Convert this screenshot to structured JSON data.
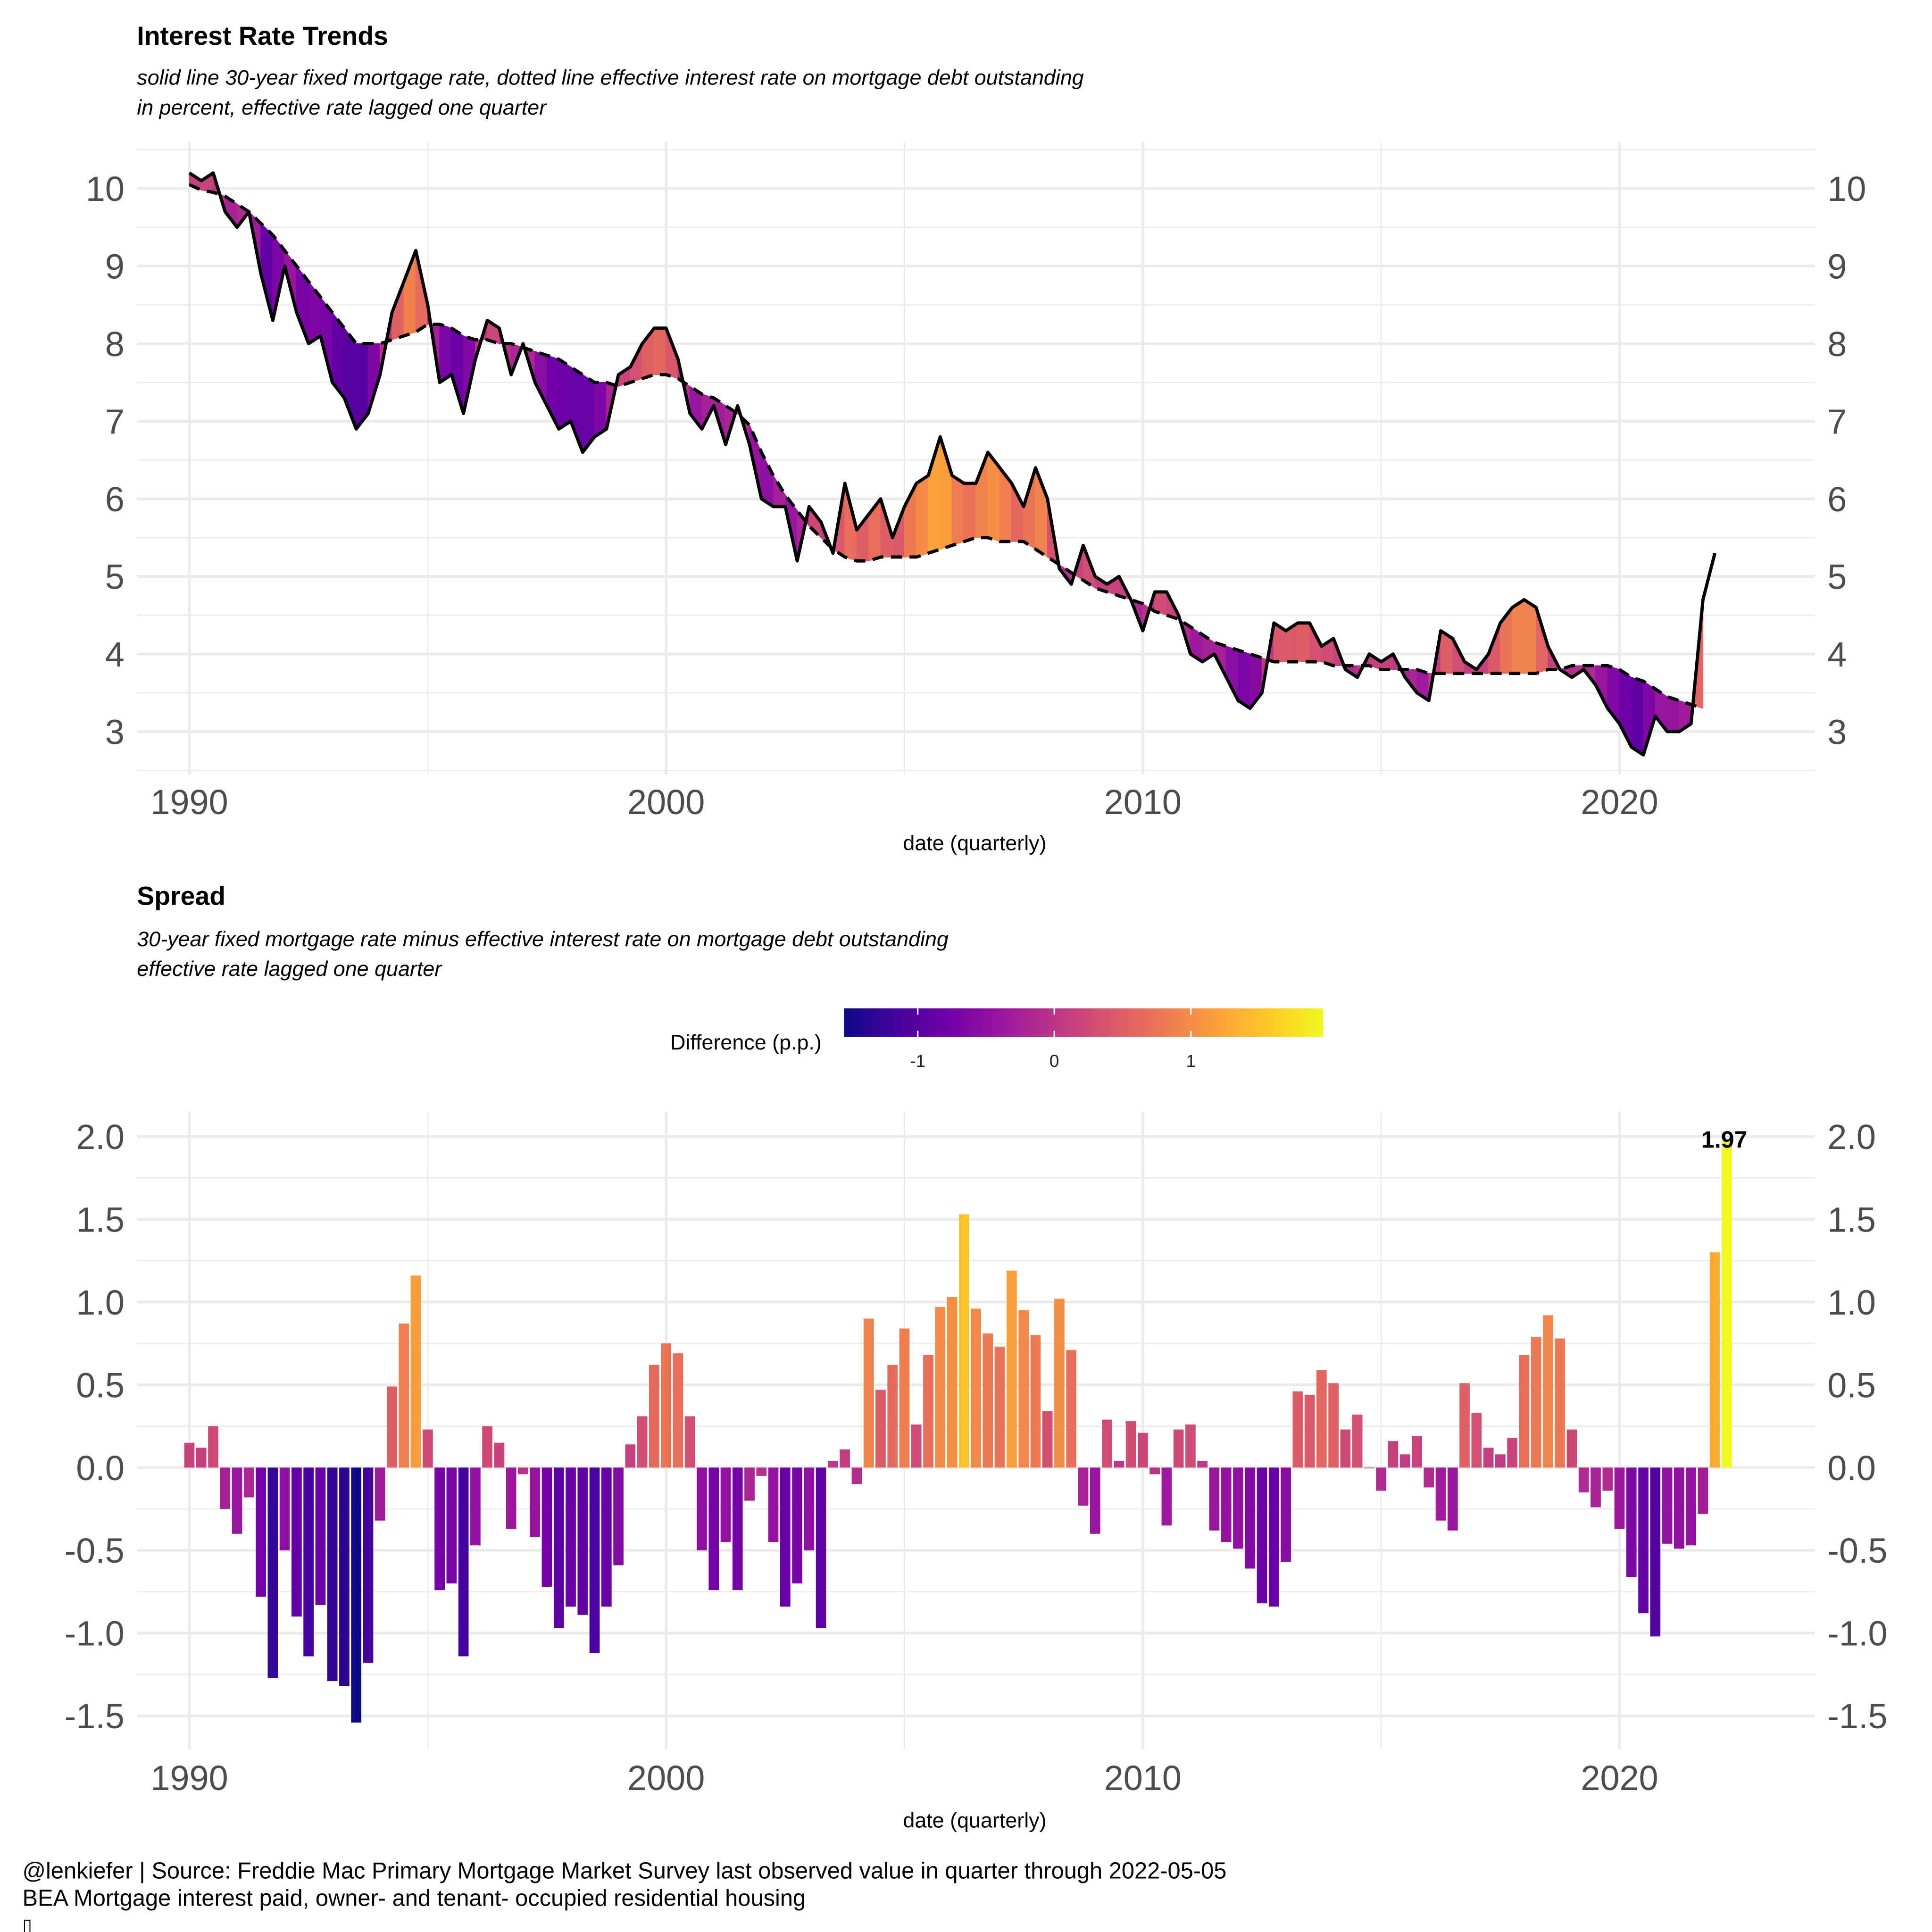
{
  "colors": {
    "palette": [
      "#0d0887",
      "#46039f",
      "#7201a8",
      "#9c179e",
      "#bd3786",
      "#d8576b",
      "#ed7953",
      "#fb9f3a",
      "#fdca26",
      "#f0f921"
    ],
    "line": "#000000",
    "grid": "#ebebeb",
    "axis_text": "#4d4d4d"
  },
  "chart_data": [
    {
      "type": "line",
      "title": "Interest Rate Trends",
      "subtitle_line1": "solid line 30-year fixed mortgage rate, dotted line effective interest rate on mortgage debt outstanding",
      "subtitle_line2": "in percent, effective rate lagged one quarter",
      "xlabel": "date (quarterly)",
      "ylabel": "",
      "x_start": 1990.0,
      "x_step": 0.25,
      "xlim": [
        1988.9,
        2024.1
      ],
      "ylim": [
        2.45,
        10.6
      ],
      "x_ticks": [
        1990,
        2000,
        2010,
        2020
      ],
      "y_ticks": [
        3,
        4,
        5,
        6,
        7,
        8,
        9,
        10
      ],
      "series": [
        {
          "name": "30-year fixed mortgage rate",
          "style": "solid",
          "values": [
            10.2,
            10.1,
            10.2,
            9.7,
            9.5,
            9.7,
            8.9,
            8.3,
            9.0,
            8.4,
            8.0,
            8.1,
            7.5,
            7.3,
            6.9,
            7.1,
            7.6,
            8.4,
            8.8,
            9.2,
            8.5,
            7.5,
            7.6,
            7.1,
            7.8,
            8.3,
            8.2,
            7.6,
            8.0,
            7.5,
            7.2,
            6.9,
            7.0,
            6.6,
            6.8,
            6.9,
            7.6,
            7.7,
            8.0,
            8.2,
            8.2,
            7.8,
            7.1,
            6.9,
            7.2,
            6.7,
            7.2,
            6.7,
            6.0,
            5.9,
            5.9,
            5.2,
            5.9,
            5.7,
            5.3,
            6.2,
            5.6,
            5.8,
            6.0,
            5.5,
            5.9,
            6.2,
            6.3,
            6.8,
            6.3,
            6.2,
            6.2,
            6.6,
            6.4,
            6.2,
            5.9,
            6.4,
            6.0,
            5.1,
            4.9,
            5.4,
            5.0,
            4.9,
            5.0,
            4.7,
            4.3,
            4.8,
            4.8,
            4.5,
            4.0,
            3.9,
            4.0,
            3.7,
            3.4,
            3.3,
            3.5,
            4.4,
            4.3,
            4.4,
            4.4,
            4.1,
            4.2,
            3.8,
            3.7,
            4.0,
            3.9,
            4.0,
            3.7,
            3.5,
            3.4,
            4.3,
            4.2,
            3.9,
            3.8,
            4.0,
            4.4,
            4.6,
            4.7,
            4.6,
            4.1,
            3.8,
            3.7,
            3.8,
            3.6,
            3.3,
            3.1,
            2.8,
            2.7,
            3.2,
            3.0,
            3.0,
            3.1,
            4.7,
            5.3
          ]
        },
        {
          "name": "effective interest rate on mortgage debt outstanding (lagged one quarter)",
          "style": "dashed",
          "values": [
            10.05,
            9.98,
            9.95,
            9.9,
            9.8,
            9.7,
            9.55,
            9.4,
            9.2,
            9.0,
            8.8,
            8.6,
            8.4,
            8.2,
            8.0,
            8.0,
            8.0,
            8.05,
            8.1,
            8.15,
            8.25,
            8.25,
            8.2,
            8.1,
            8.05,
            8.05,
            8.0,
            8.0,
            7.95,
            7.9,
            7.85,
            7.8,
            7.7,
            7.6,
            7.5,
            7.5,
            7.45,
            7.5,
            7.55,
            7.6,
            7.6,
            7.55,
            7.45,
            7.35,
            7.3,
            7.2,
            7.1,
            6.95,
            6.6,
            6.3,
            6.05,
            5.85,
            5.65,
            5.5,
            5.35,
            5.25,
            5.2,
            5.2,
            5.25,
            5.25,
            5.25,
            5.25,
            5.3,
            5.35,
            5.4,
            5.45,
            5.5,
            5.5,
            5.45,
            5.45,
            5.45,
            5.35,
            5.25,
            5.15,
            5.05,
            4.95,
            4.85,
            4.8,
            4.75,
            4.7,
            4.65,
            4.55,
            4.5,
            4.45,
            4.35,
            4.25,
            4.15,
            4.1,
            4.05,
            4.0,
            3.95,
            3.9,
            3.9,
            3.9,
            3.9,
            3.9,
            3.85,
            3.85,
            3.85,
            3.85,
            3.8,
            3.8,
            3.8,
            3.8,
            3.75,
            3.75,
            3.75,
            3.75,
            3.75,
            3.75,
            3.75,
            3.75,
            3.75,
            3.75,
            3.8,
            3.8,
            3.85,
            3.85,
            3.85,
            3.85,
            3.8,
            3.7,
            3.65,
            3.55,
            3.45,
            3.4,
            3.35,
            3.3
          ]
        }
      ]
    },
    {
      "type": "bar",
      "title": "Spread",
      "subtitle_line1": "30-year fixed mortgage rate minus effective interest rate on mortgage debt outstanding",
      "subtitle_line2": "effective rate lagged one quarter",
      "xlabel": "date (quarterly)",
      "ylabel": "",
      "x_start": 1990.0,
      "x_step": 0.25,
      "xlim": [
        1988.9,
        2024.1
      ],
      "ylim": [
        -1.7,
        2.15
      ],
      "x_ticks": [
        1990,
        2000,
        2010,
        2020
      ],
      "y_ticks": [
        "-1.5",
        "-1.0",
        "-0.5",
        "0.0",
        "0.5",
        "1.0",
        "1.5",
        "2.0"
      ],
      "values": [
        0.15,
        0.12,
        0.25,
        -0.25,
        -0.4,
        -0.18,
        -0.78,
        -1.27,
        -0.5,
        -0.9,
        -1.14,
        -0.83,
        -1.29,
        -1.32,
        -1.54,
        -1.18,
        -0.32,
        0.49,
        0.87,
        1.16,
        0.23,
        -0.74,
        -0.7,
        -1.14,
        -0.47,
        0.25,
        0.15,
        -0.37,
        -0.04,
        -0.42,
        -0.72,
        -0.97,
        -0.84,
        -0.89,
        -1.12,
        -0.84,
        -0.59,
        0.14,
        0.31,
        0.62,
        0.75,
        0.69,
        0.31,
        -0.5,
        -0.74,
        -0.45,
        -0.74,
        -0.2,
        -0.05,
        -0.45,
        -0.84,
        -0.7,
        -0.5,
        -0.97,
        0.04,
        0.11,
        -0.1,
        0.9,
        0.47,
        0.62,
        0.84,
        0.26,
        0.68,
        0.97,
        1.03,
        1.53,
        0.96,
        0.81,
        0.73,
        1.19,
        0.95,
        0.8,
        0.34,
        1.02,
        0.71,
        -0.23,
        -0.4,
        0.29,
        0.04,
        0.28,
        0.21,
        -0.04,
        -0.35,
        0.23,
        0.26,
        0.04,
        -0.38,
        -0.45,
        -0.49,
        -0.61,
        -0.82,
        -0.84,
        -0.57,
        0.46,
        0.44,
        0.59,
        0.51,
        0.23,
        0.32,
        0.0,
        -0.14,
        0.16,
        0.08,
        0.19,
        -0.12,
        -0.32,
        -0.38,
        0.51,
        0.33,
        0.12,
        0.08,
        0.18,
        0.68,
        0.79,
        0.92,
        0.78,
        0.23,
        -0.15,
        -0.24,
        -0.14,
        -0.37,
        -0.66,
        -0.88,
        -1.02,
        -0.46,
        -0.49,
        -0.47,
        -0.28,
        1.3,
        1.97
      ],
      "annotation": "1.97",
      "legend": {
        "title": "Difference (p.p.)",
        "position": "top",
        "tick_labels": [
          "-1",
          "0",
          "1"
        ],
        "tick_values": [
          -1,
          0,
          1
        ],
        "range": [
          -1.54,
          1.97
        ]
      }
    }
  ],
  "caption": {
    "line1": "@lenkiefer | Source: Freddie Mac Primary Mortgage Market Survey last observed value in quarter through 2022-05-05",
    "line2": "BEA Mortgage interest paid, owner- and tenant- occupied residential housing",
    "line3": "▯"
  }
}
